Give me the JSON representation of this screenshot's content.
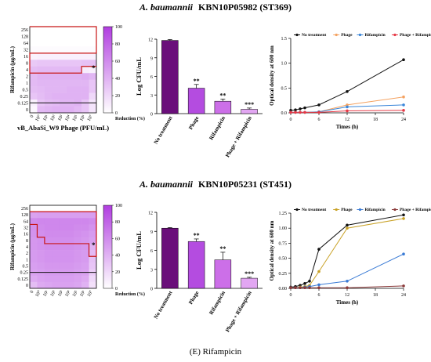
{
  "panels": [
    {
      "title_species": "A. baumannii",
      "title_strain": "KBN10P05982 (ST369)",
      "heatmap": {
        "ylabel": "Rifampicin (µg/mL)",
        "xlabel": "vB_AbaSi_W9 Phage (PFU/mL)",
        "y_ticks": [
          "256",
          "128",
          "64",
          "32",
          "16",
          "8",
          "4",
          "2",
          "1",
          "0.5",
          "0.25",
          "0.125",
          "0"
        ],
        "x_ticks": [
          "0",
          "10⁰",
          "10¹",
          "10²",
          "10³",
          "10⁴",
          "10⁵",
          "10⁶",
          "10⁷"
        ],
        "colorbar_ticks": [
          "100",
          "80",
          "60",
          "40",
          "20",
          "0"
        ],
        "colorbar_label": "Reduction (%)",
        "colorbar_range": [
          0,
          100
        ],
        "marker": "*",
        "values": [
          [
            0,
            0,
            0,
            0,
            0,
            0,
            0,
            0,
            0
          ],
          [
            0,
            0,
            0,
            0,
            0,
            0,
            0,
            0,
            0
          ],
          [
            0,
            0,
            0,
            0,
            0,
            0,
            0,
            0,
            0
          ],
          [
            2,
            2,
            2,
            2,
            2,
            2,
            2,
            2,
            2
          ],
          [
            6,
            8,
            8,
            8,
            8,
            8,
            8,
            8,
            8
          ],
          [
            28,
            30,
            30,
            30,
            30,
            30,
            30,
            32,
            32
          ],
          [
            34,
            36,
            36,
            36,
            36,
            36,
            36,
            10,
            8
          ],
          [
            36,
            40,
            40,
            40,
            40,
            40,
            40,
            42,
            38
          ],
          [
            36,
            38,
            38,
            38,
            38,
            38,
            38,
            38,
            30
          ],
          [
            34,
            36,
            38,
            38,
            38,
            40,
            40,
            40,
            30
          ],
          [
            30,
            34,
            38,
            40,
            40,
            40,
            40,
            40,
            20
          ],
          [
            8,
            30,
            34,
            36,
            38,
            38,
            40,
            30,
            14
          ],
          [
            4,
            36,
            38,
            40,
            40,
            40,
            36,
            30,
            14
          ]
        ]
      },
      "bar": {
        "ylabel": "Log CFU/mL",
        "ylim": [
          0,
          12
        ],
        "y_ticks": [
          "0",
          "3",
          "6",
          "9",
          "12"
        ],
        "categories": [
          "No treatment",
          "Phage",
          "Rifampicin",
          "Phage + Rifampicin"
        ],
        "values": [
          11.8,
          4.1,
          2.0,
          0.7
        ],
        "errors": [
          0.15,
          0.6,
          0.35,
          0.2
        ],
        "significance": [
          "",
          "**",
          "**",
          "***"
        ]
      },
      "line": {
        "ylabel": "Optical density at 600 nm",
        "xlabel": "Times (h)",
        "x_ticks": [
          "0",
          "6",
          "12",
          "18",
          "24"
        ],
        "y_ticks": [
          "0.0",
          "0.5",
          "1.0",
          "1.5"
        ],
        "xlim": [
          0,
          24
        ],
        "ylim": [
          0,
          1.5
        ],
        "series": [
          {
            "name": "No treatment",
            "color": "#111111",
            "x": [
              0,
              1,
              2,
              3,
              6,
              12,
              24
            ],
            "y": [
              0.05,
              0.06,
              0.08,
              0.1,
              0.16,
              0.43,
              1.07
            ]
          },
          {
            "name": "Phage",
            "color": "#f4a261",
            "x": [
              0,
              1,
              2,
              3,
              6,
              12,
              24
            ],
            "y": [
              0.01,
              0.01,
              0.01,
              0.01,
              0.02,
              0.16,
              0.32
            ]
          },
          {
            "name": "Rifampicin",
            "color": "#3a86d9",
            "x": [
              0,
              1,
              2,
              3,
              6,
              12,
              24
            ],
            "y": [
              0.01,
              0.01,
              0.01,
              0.01,
              0.02,
              0.12,
              0.16
            ]
          },
          {
            "name": "Phage + Rifampicin",
            "color": "#e63946",
            "x": [
              0,
              1,
              2,
              3,
              6,
              12,
              24
            ],
            "y": [
              0.01,
              0.01,
              0.01,
              0.01,
              0.01,
              0.04,
              0.05
            ]
          }
        ]
      }
    },
    {
      "title_species": "A. baumannii",
      "title_strain": "KBN10P05231 (ST451)",
      "heatmap": {
        "ylabel": "Rifampicin (µg/mL)",
        "xlabel": "",
        "y_ticks": [
          "256",
          "128",
          "64",
          "32",
          "16",
          "8",
          "4",
          "2",
          "1",
          "0.5",
          "0.25",
          "0.125",
          "0"
        ],
        "x_ticks": [
          "0",
          "10⁰",
          "10¹",
          "10²",
          "10³",
          "10⁴",
          "10⁵",
          "10⁶",
          "10⁷"
        ],
        "colorbar_ticks": [
          "100",
          "80",
          "60",
          "40",
          "20",
          "0"
        ],
        "colorbar_label": "Reduction (%)",
        "colorbar_range": [
          0,
          100
        ],
        "marker": "*",
        "values": [
          [
            0,
            0,
            0,
            0,
            0,
            0,
            0,
            0,
            0
          ],
          [
            48,
            50,
            50,
            50,
            50,
            50,
            50,
            50,
            50
          ],
          [
            60,
            62,
            62,
            62,
            62,
            62,
            62,
            62,
            60
          ],
          [
            58,
            60,
            62,
            62,
            62,
            62,
            60,
            60,
            56
          ],
          [
            56,
            58,
            60,
            60,
            60,
            60,
            58,
            56,
            52
          ],
          [
            54,
            56,
            58,
            58,
            58,
            58,
            56,
            54,
            50
          ],
          [
            54,
            56,
            58,
            58,
            58,
            58,
            56,
            54,
            40
          ],
          [
            52,
            54,
            56,
            56,
            56,
            56,
            54,
            52,
            36
          ],
          [
            52,
            54,
            56,
            56,
            56,
            56,
            54,
            52,
            32
          ],
          [
            50,
            52,
            54,
            54,
            54,
            54,
            52,
            50,
            30
          ],
          [
            48,
            50,
            52,
            52,
            52,
            52,
            50,
            48,
            26
          ],
          [
            44,
            48,
            50,
            50,
            50,
            50,
            48,
            44,
            20
          ],
          [
            34,
            44,
            46,
            48,
            48,
            48,
            46,
            40,
            16
          ]
        ]
      },
      "bar": {
        "ylabel": "Log CFU/mL",
        "ylim": [
          0,
          12
        ],
        "y_ticks": [
          "0",
          "3",
          "6",
          "9",
          "12"
        ],
        "categories": [
          "No treatment",
          "Phage",
          "Rifampicin",
          "Phage + Rifampicin"
        ],
        "values": [
          9.5,
          7.4,
          4.5,
          1.6
        ],
        "errors": [
          0.1,
          0.4,
          1.2,
          0.15
        ],
        "significance": [
          "",
          "**",
          "**",
          "***"
        ]
      },
      "line": {
        "ylabel": "Optical density at 600 nm",
        "xlabel": "Times (h)",
        "x_ticks": [
          "0",
          "6",
          "12",
          "18",
          "24"
        ],
        "y_ticks": [
          "0.00",
          "0.25",
          "0.50",
          "0.75",
          "1.00",
          "1.25"
        ],
        "xlim": [
          0,
          24
        ],
        "ylim": [
          0,
          1.25
        ],
        "series": [
          {
            "name": "No treatment",
            "color": "#111111",
            "x": [
              0,
              1,
              2,
              3,
              4,
              6,
              12,
              24
            ],
            "y": [
              0.02,
              0.03,
              0.05,
              0.08,
              0.12,
              0.65,
              1.05,
              1.22
            ]
          },
          {
            "name": "Phage",
            "color": "#c9a227",
            "x": [
              0,
              1,
              2,
              3,
              4,
              6,
              12,
              24
            ],
            "y": [
              0.01,
              0.01,
              0.02,
              0.03,
              0.05,
              0.28,
              1.0,
              1.16
            ]
          },
          {
            "name": "Rifampicin",
            "color": "#3a7bd5",
            "x": [
              0,
              1,
              2,
              3,
              4,
              6,
              12,
              24
            ],
            "y": [
              0.01,
              0.01,
              0.01,
              0.02,
              0.03,
              0.06,
              0.12,
              0.57
            ]
          },
          {
            "name": "Phage + Rifampicin",
            "color": "#8b3a3a",
            "x": [
              0,
              1,
              2,
              3,
              4,
              6,
              12,
              24
            ],
            "y": [
              0.01,
              0.01,
              0.01,
              0.01,
              0.01,
              0.01,
              0.01,
              0.04
            ]
          }
        ]
      }
    }
  ],
  "caption": "(E) Rifampicin",
  "colors": {
    "bars": [
      "#6a0f7a",
      "#b44ce0",
      "#cc6fe8",
      "#e2a6f2"
    ],
    "heat_low": "#ffffff",
    "heat_high": "#b13ee0",
    "outline": "#c81414",
    "mic_line": "#111111"
  }
}
